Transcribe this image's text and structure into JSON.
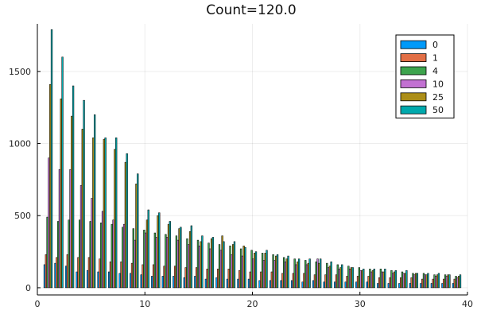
{
  "chart_data": {
    "type": "bar",
    "title": "Count=120.0",
    "xlabel": "",
    "ylabel": "",
    "xlim": [
      0,
      40
    ],
    "ylim": [
      -50,
      1830
    ],
    "grid": true,
    "legend_position": "top-right",
    "x_ticks": [
      0,
      10,
      20,
      30,
      40
    ],
    "y_ticks": [
      0,
      500,
      1000,
      1500
    ],
    "x": [
      1,
      2,
      3,
      4,
      5,
      6,
      7,
      8,
      9,
      10,
      11,
      12,
      13,
      14,
      15,
      16,
      17,
      18,
      19,
      20,
      21,
      22,
      23,
      24,
      25,
      26,
      27,
      28,
      29,
      30,
      31,
      32,
      33,
      34,
      35,
      36,
      37,
      38,
      39
    ],
    "series": [
      {
        "name": "0",
        "color": "#009af9",
        "values": [
          160,
          170,
          150,
          110,
          120,
          110,
          110,
          100,
          100,
          90,
          80,
          80,
          80,
          70,
          80,
          60,
          70,
          60,
          60,
          60,
          50,
          50,
          50,
          50,
          40,
          50,
          40,
          40,
          40,
          40,
          40,
          30,
          30,
          30,
          30,
          30,
          30,
          30,
          30
        ]
      },
      {
        "name": "1",
        "color": "#e26f46",
        "values": [
          230,
          210,
          230,
          210,
          210,
          200,
          180,
          180,
          170,
          160,
          160,
          150,
          150,
          140,
          140,
          130,
          130,
          130,
          120,
          110,
          110,
          110,
          100,
          100,
          100,
          90,
          90,
          90,
          80,
          80,
          80,
          70,
          70,
          70,
          70,
          60,
          60,
          60,
          60
        ]
      },
      {
        "name": "4",
        "color": "#3da44d",
        "values": [
          490,
          460,
          470,
          470,
          460,
          450,
          440,
          420,
          410,
          400,
          380,
          370,
          360,
          340,
          330,
          310,
          300,
          290,
          270,
          260,
          240,
          230,
          210,
          200,
          190,
          180,
          170,
          160,
          150,
          140,
          130,
          130,
          120,
          110,
          100,
          100,
          90,
          90,
          80
        ]
      },
      {
        "name": "10",
        "color": "#c271d2",
        "values": [
          900,
          820,
          820,
          710,
          620,
          530,
          470,
          440,
          330,
          380,
          350,
          350,
          330,
          300,
          290,
          270,
          260,
          230,
          220,
          200,
          190,
          190,
          180,
          160,
          160,
          200,
          140,
          130,
          130,
          120,
          110,
          110,
          100,
          100,
          90,
          90,
          80,
          80,
          70
        ]
      },
      {
        "name": "25",
        "color": "#ac8e18",
        "values": [
          1410,
          1310,
          1190,
          1100,
          1040,
          1030,
          960,
          870,
          720,
          470,
          500,
          440,
          410,
          390,
          320,
          340,
          360,
          300,
          290,
          240,
          240,
          220,
          200,
          180,
          170,
          170,
          150,
          140,
          140,
          120,
          120,
          110,
          110,
          100,
          100,
          90,
          90,
          90,
          80
        ]
      },
      {
        "name": "50",
        "color": "#00a9ad",
        "values": [
          1790,
          1600,
          1400,
          1300,
          1200,
          1040,
          1040,
          930,
          790,
          540,
          520,
          460,
          420,
          430,
          360,
          350,
          320,
          320,
          280,
          250,
          260,
          230,
          220,
          200,
          200,
          200,
          180,
          160,
          140,
          130,
          130,
          130,
          120,
          120,
          100,
          100,
          100,
          90,
          90
        ]
      }
    ]
  }
}
